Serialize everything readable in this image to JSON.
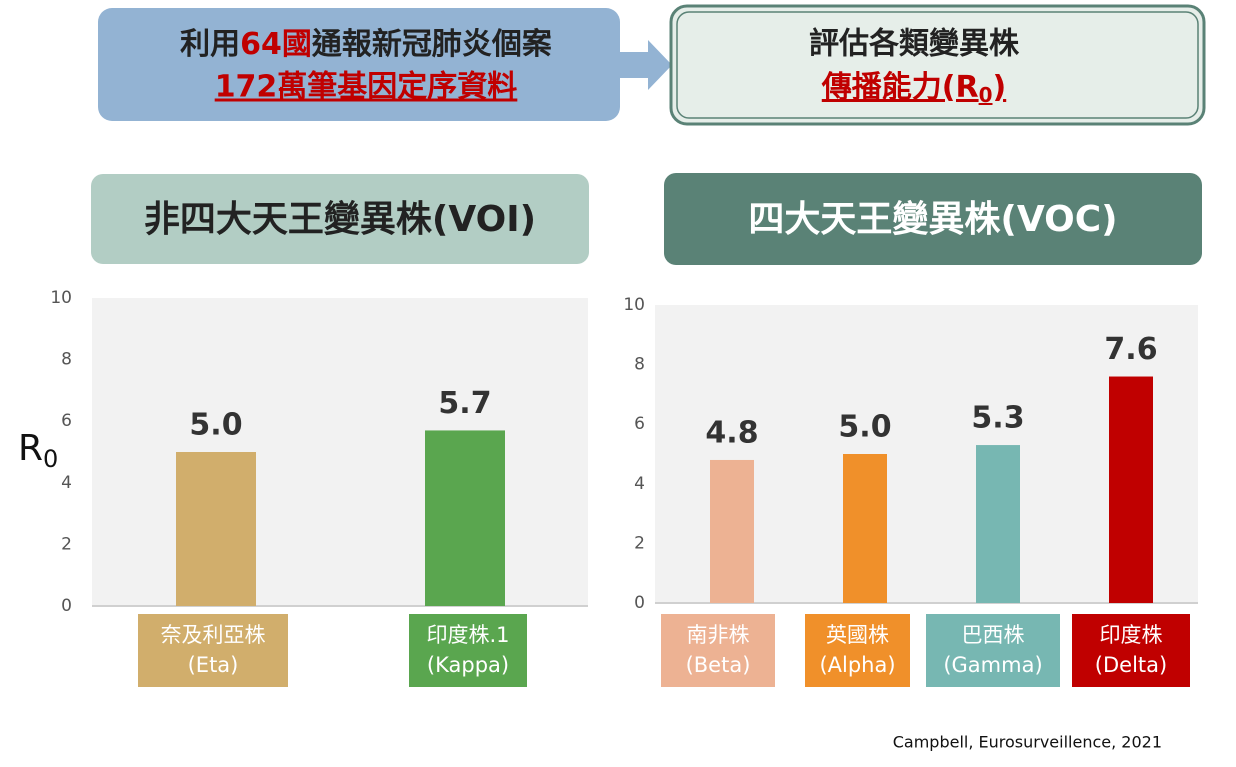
{
  "header": {
    "left": {
      "line1": [
        "利用",
        "64國",
        "通報新冠肺炎個案"
      ],
      "line2": "172萬筆基因定序資料"
    },
    "right": {
      "line1": "評估各類變異株",
      "line2": [
        "傳播能力(R",
        "0",
        ")"
      ]
    }
  },
  "chart_data": [
    {
      "type": "bar",
      "title": "非四大天王變異株(VOI)",
      "y_label": "R",
      "y_label_sub": "0",
      "categories": [
        [
          "奈及利亞株",
          "(Eta)"
        ],
        [
          "印度株.1",
          "(Kappa)"
        ]
      ],
      "values": [
        5.0,
        5.7
      ],
      "value_labels": [
        "5.0",
        "5.7"
      ],
      "colors": [
        "#d1ae6c",
        "#5aa64f"
      ],
      "ylim": [
        0,
        10
      ],
      "yticks": [
        0,
        2,
        4,
        6,
        8,
        10
      ],
      "grid": false
    },
    {
      "type": "bar",
      "title": "四大天王變異株(VOC)",
      "categories": [
        [
          "南非株",
          "(Beta)"
        ],
        [
          "英國株",
          "(Alpha)"
        ],
        [
          "巴西株",
          "(Gamma)"
        ],
        [
          "印度株",
          "(Delta)"
        ]
      ],
      "values": [
        4.8,
        5.0,
        5.3,
        7.6
      ],
      "value_labels": [
        "4.8",
        "5.0",
        "5.3",
        "7.6"
      ],
      "colors": [
        "#edb293",
        "#f0902a",
        "#77b7b2",
        "#c00000"
      ],
      "ylim": [
        0,
        10
      ],
      "yticks": [
        0,
        2,
        4,
        6,
        8,
        10
      ],
      "grid": false
    }
  ],
  "citation": "Campbell, Eurosurveillence, 2021"
}
